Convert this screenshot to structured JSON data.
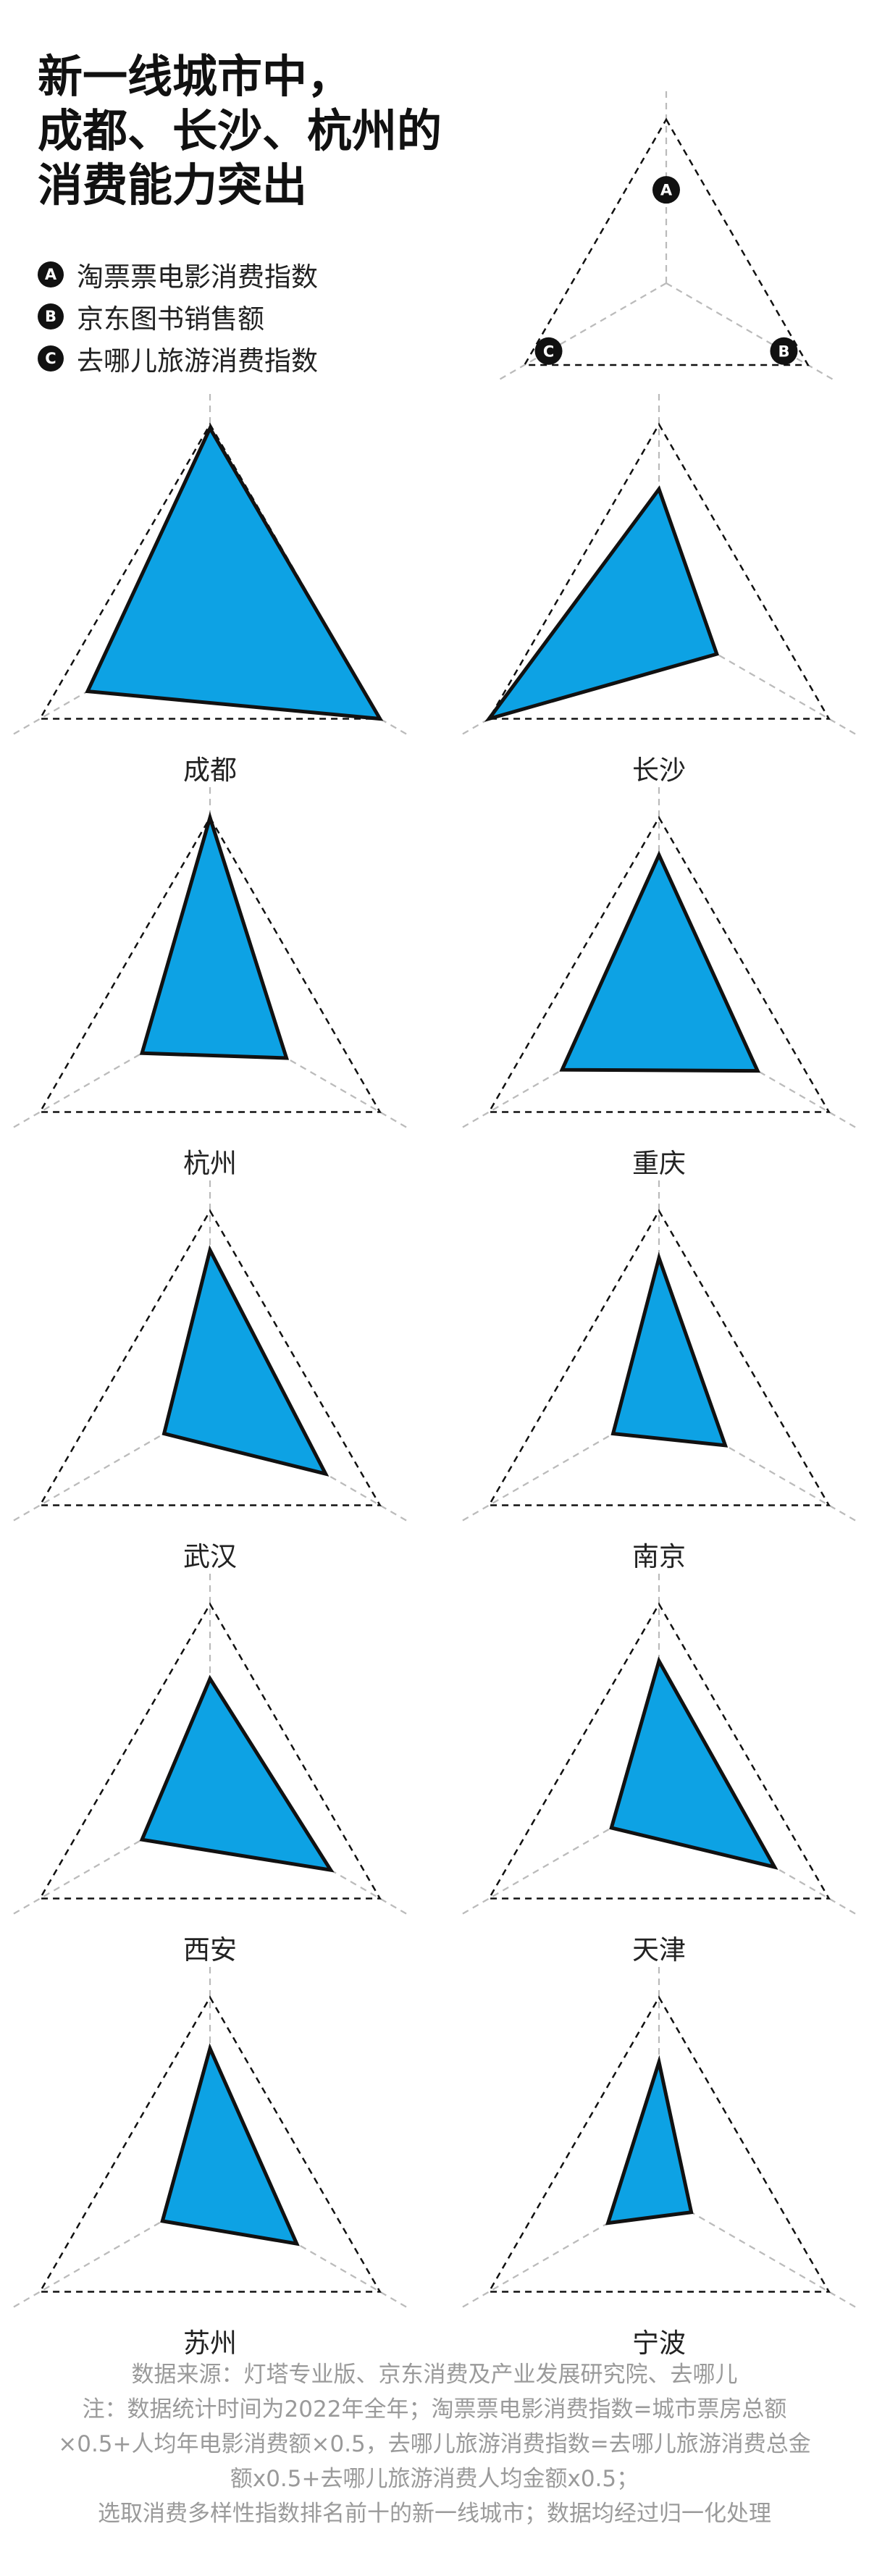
{
  "header": {
    "title_lines": [
      "新一线城市中，",
      "成都、长沙、杭州的",
      "消费能力突出"
    ]
  },
  "legend": [
    {
      "badge": "A",
      "label": "淘票票电影消费指数"
    },
    {
      "badge": "B",
      "label": "京东图书销售额"
    },
    {
      "badge": "C",
      "label": "去哪儿旅游消费指数"
    }
  ],
  "colors": {
    "fill": "#0DA2E4",
    "outline": "#111111",
    "frame": "#111111",
    "axis": "#BBBBBB",
    "note_text": "#9A9A9A"
  },
  "chart_data": {
    "type": "radar",
    "axes": [
      "A",
      "B",
      "C"
    ],
    "range": [
      0,
      1
    ],
    "grid": "dashed outer triangle",
    "cities": [
      {
        "name": "成都",
        "values": [
          0.98,
          1.0,
          0.72
        ]
      },
      {
        "name": "长沙",
        "values": [
          0.67,
          0.34,
          1.0
        ]
      },
      {
        "name": "杭州",
        "values": [
          1.0,
          0.45,
          0.4
        ]
      },
      {
        "name": "重庆",
        "values": [
          0.81,
          0.58,
          0.57
        ]
      },
      {
        "name": "武汉",
        "values": [
          0.8,
          0.68,
          0.27
        ]
      },
      {
        "name": "南京",
        "values": [
          0.76,
          0.39,
          0.27
        ]
      },
      {
        "name": "西安",
        "values": [
          0.62,
          0.71,
          0.4
        ]
      },
      {
        "name": "天津",
        "values": [
          0.71,
          0.68,
          0.28
        ]
      },
      {
        "name": "苏州",
        "values": [
          0.74,
          0.51,
          0.28
        ]
      },
      {
        "name": "宁波",
        "values": [
          0.67,
          0.19,
          0.3
        ]
      }
    ]
  },
  "notes": [
    "数据来源：灯塔专业版、京东消费及产业发展研究院、去哪儿",
    "注：数据统计时间为2022年全年；淘票票电影消费指数=城市票房总额",
    "×0.5+人均年电影消费额×0.5，去哪儿旅游消费指数=去哪儿旅游消费总金",
    "额x0.5+去哪儿旅游消费人均金额x0.5；",
    "选取消费多样性指数排名前十的新一线城市；数据均经过归一化处理"
  ]
}
